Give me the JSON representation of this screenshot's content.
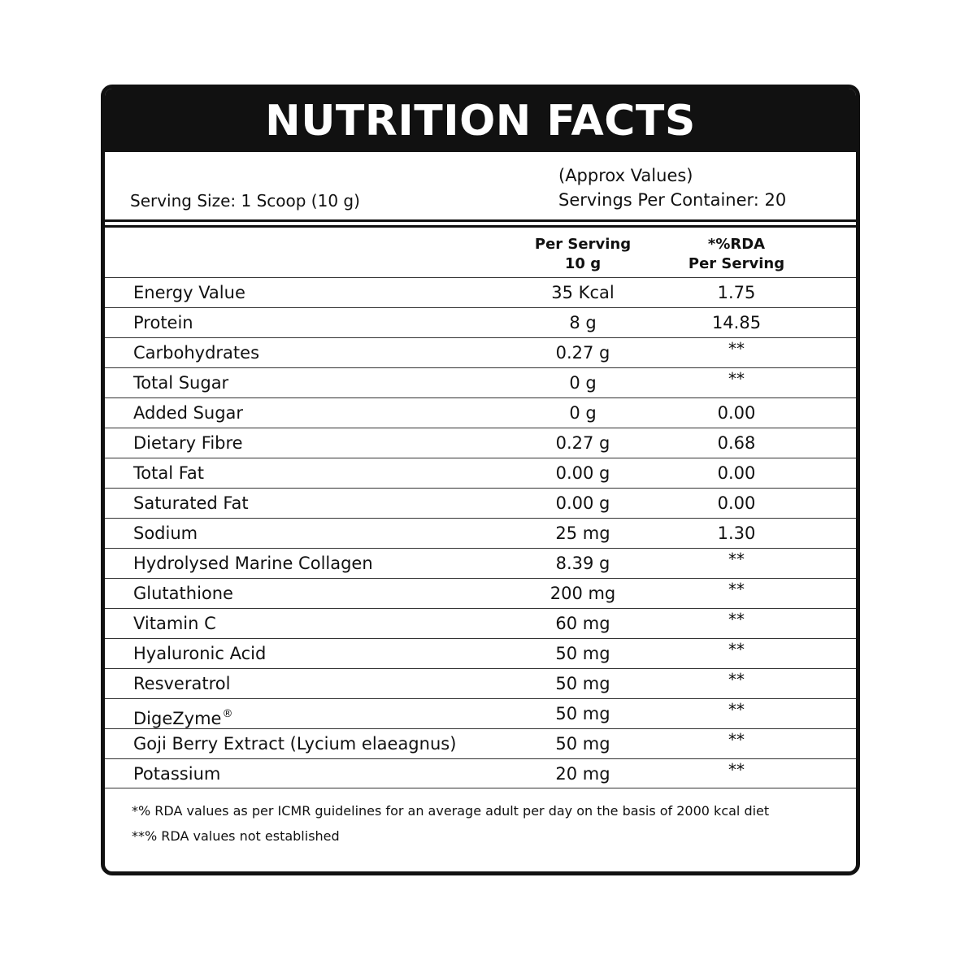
{
  "title": "NUTRITION FACTS",
  "serving_size": "Serving Size: 1 Scoop (10 g)",
  "approx_values": "(Approx Values)",
  "servings_per_container": "Servings Per Container: 20",
  "columns": {
    "per_serving": [
      "Per Serving",
      "10 g"
    ],
    "rda": [
      "*%RDA",
      "Per Serving"
    ]
  },
  "nutrients": [
    {
      "name": "Energy Value",
      "amount": "35 Kcal",
      "rda": "1.75"
    },
    {
      "name": "Protein",
      "amount": "8 g",
      "rda": "14.85"
    },
    {
      "name": "Carbohydrates",
      "amount": "0.27 g",
      "rda": "**"
    },
    {
      "name": "Total Sugar",
      "amount": "0 g",
      "rda": "**"
    },
    {
      "name": "Added Sugar",
      "amount": "0 g",
      "rda": "0.00"
    },
    {
      "name": "Dietary Fibre",
      "amount": "0.27 g",
      "rda": "0.68"
    },
    {
      "name": "Total Fat",
      "amount": "0.00 g",
      "rda": "0.00"
    },
    {
      "name": "Saturated Fat",
      "amount": "0.00 g",
      "rda": "0.00"
    },
    {
      "name": "Sodium",
      "amount": "25 mg",
      "rda": "1.30"
    },
    {
      "name": "Hydrolysed Marine Collagen",
      "amount": "8.39 g",
      "rda": "**"
    },
    {
      "name": "Glutathione",
      "amount": "200 mg",
      "rda": "**"
    },
    {
      "name": "Vitamin C",
      "amount": "60 mg",
      "rda": "**"
    },
    {
      "name": "Hyaluronic Acid",
      "amount": "50 mg",
      "rda": "**"
    },
    {
      "name": "Resveratrol",
      "amount": "50 mg",
      "rda": "**"
    },
    {
      "name": "DigeZyme",
      "mark": "®",
      "amount": "50 mg",
      "rda": "**"
    },
    {
      "name": "Goji Berry Extract (Lycium elaeagnus)",
      "amount": "50 mg",
      "rda": "**"
    },
    {
      "name": "Potassium",
      "amount": "20 mg",
      "rda": "**"
    }
  ],
  "footnotes": [
    "*% RDA values as per ICMR guidelines for an average adult per day on the basis of 2000 kcal diet",
    "**% RDA values not established"
  ]
}
